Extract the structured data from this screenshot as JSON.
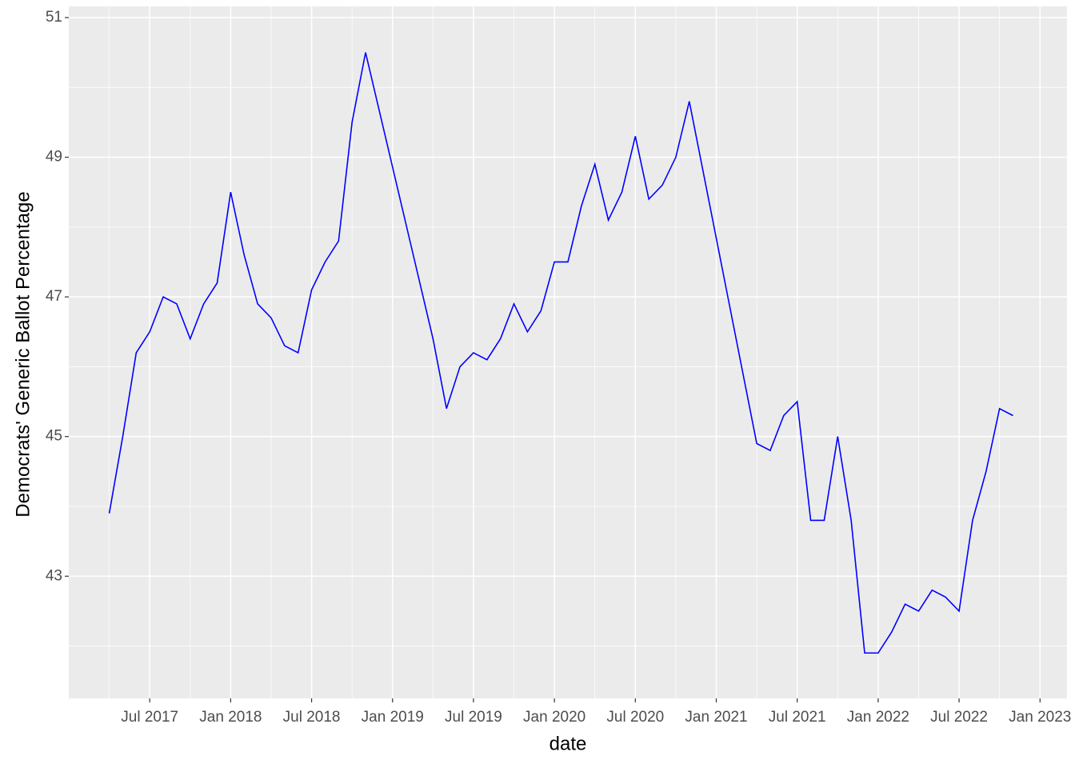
{
  "chart_data": {
    "type": "line",
    "x_label": "date",
    "y_label": "Democrats' Generic Ballot Percentage",
    "x": [
      "2017-04",
      "2017-05",
      "2017-06",
      "2017-07",
      "2017-08",
      "2017-09",
      "2017-10",
      "2017-11",
      "2017-12",
      "2018-01",
      "2018-02",
      "2018-03",
      "2018-04",
      "2018-05",
      "2018-06",
      "2018-07",
      "2018-08",
      "2018-09",
      "2018-10",
      "2018-11",
      "2019-04",
      "2019-05",
      "2019-06",
      "2019-07",
      "2019-08",
      "2019-09",
      "2019-10",
      "2019-11",
      "2019-12",
      "2020-01",
      "2020-02",
      "2020-03",
      "2020-04",
      "2020-05",
      "2020-06",
      "2020-07",
      "2020-08",
      "2020-09",
      "2020-10",
      "2020-11",
      "2021-04",
      "2021-05",
      "2021-06",
      "2021-07",
      "2021-08",
      "2021-09",
      "2021-10",
      "2021-11",
      "2021-12",
      "2022-01",
      "2022-02",
      "2022-03",
      "2022-04",
      "2022-05",
      "2022-06",
      "2022-07",
      "2022-08",
      "2022-09",
      "2022-10",
      "2022-11"
    ],
    "series": [
      {
        "color": "#0000ff",
        "values": [
          43.9,
          45.0,
          46.2,
          46.5,
          47.0,
          46.9,
          46.4,
          46.9,
          47.2,
          48.5,
          47.6,
          46.9,
          46.7,
          46.3,
          46.2,
          47.1,
          47.5,
          47.8,
          49.5,
          50.5,
          46.4,
          45.4,
          46.0,
          46.2,
          46.1,
          46.4,
          46.9,
          46.5,
          46.8,
          47.5,
          47.5,
          48.3,
          48.9,
          48.1,
          48.5,
          49.3,
          48.4,
          48.6,
          49.0,
          49.8,
          44.9,
          44.8,
          45.3,
          45.5,
          43.8,
          43.8,
          45.0,
          43.8,
          41.9,
          41.9,
          42.2,
          42.6,
          42.5,
          42.8,
          42.7,
          42.5,
          43.8,
          44.5,
          45.4,
          45.3
        ]
      }
    ],
    "xlim": [
      "2017-01",
      "2023-03"
    ],
    "xticks": [
      {
        "value": "2017-07",
        "label": "Jul 2017"
      },
      {
        "value": "2018-01",
        "label": "Jan 2018"
      },
      {
        "value": "2018-07",
        "label": "Jul 2018"
      },
      {
        "value": "2019-01",
        "label": "Jan 2019"
      },
      {
        "value": "2019-07",
        "label": "Jul 2019"
      },
      {
        "value": "2020-01",
        "label": "Jan 2020"
      },
      {
        "value": "2020-07",
        "label": "Jul 2020"
      },
      {
        "value": "2021-01",
        "label": "Jan 2021"
      },
      {
        "value": "2021-07",
        "label": "Jul 2021"
      },
      {
        "value": "2022-01",
        "label": "Jan 2022"
      },
      {
        "value": "2022-07",
        "label": "Jul 2022"
      },
      {
        "value": "2023-01",
        "label": "Jan 2023"
      }
    ],
    "ylim": [
      41.25,
      51.16
    ],
    "yticks": [
      43,
      45,
      47,
      49,
      51
    ],
    "grid": true
  }
}
